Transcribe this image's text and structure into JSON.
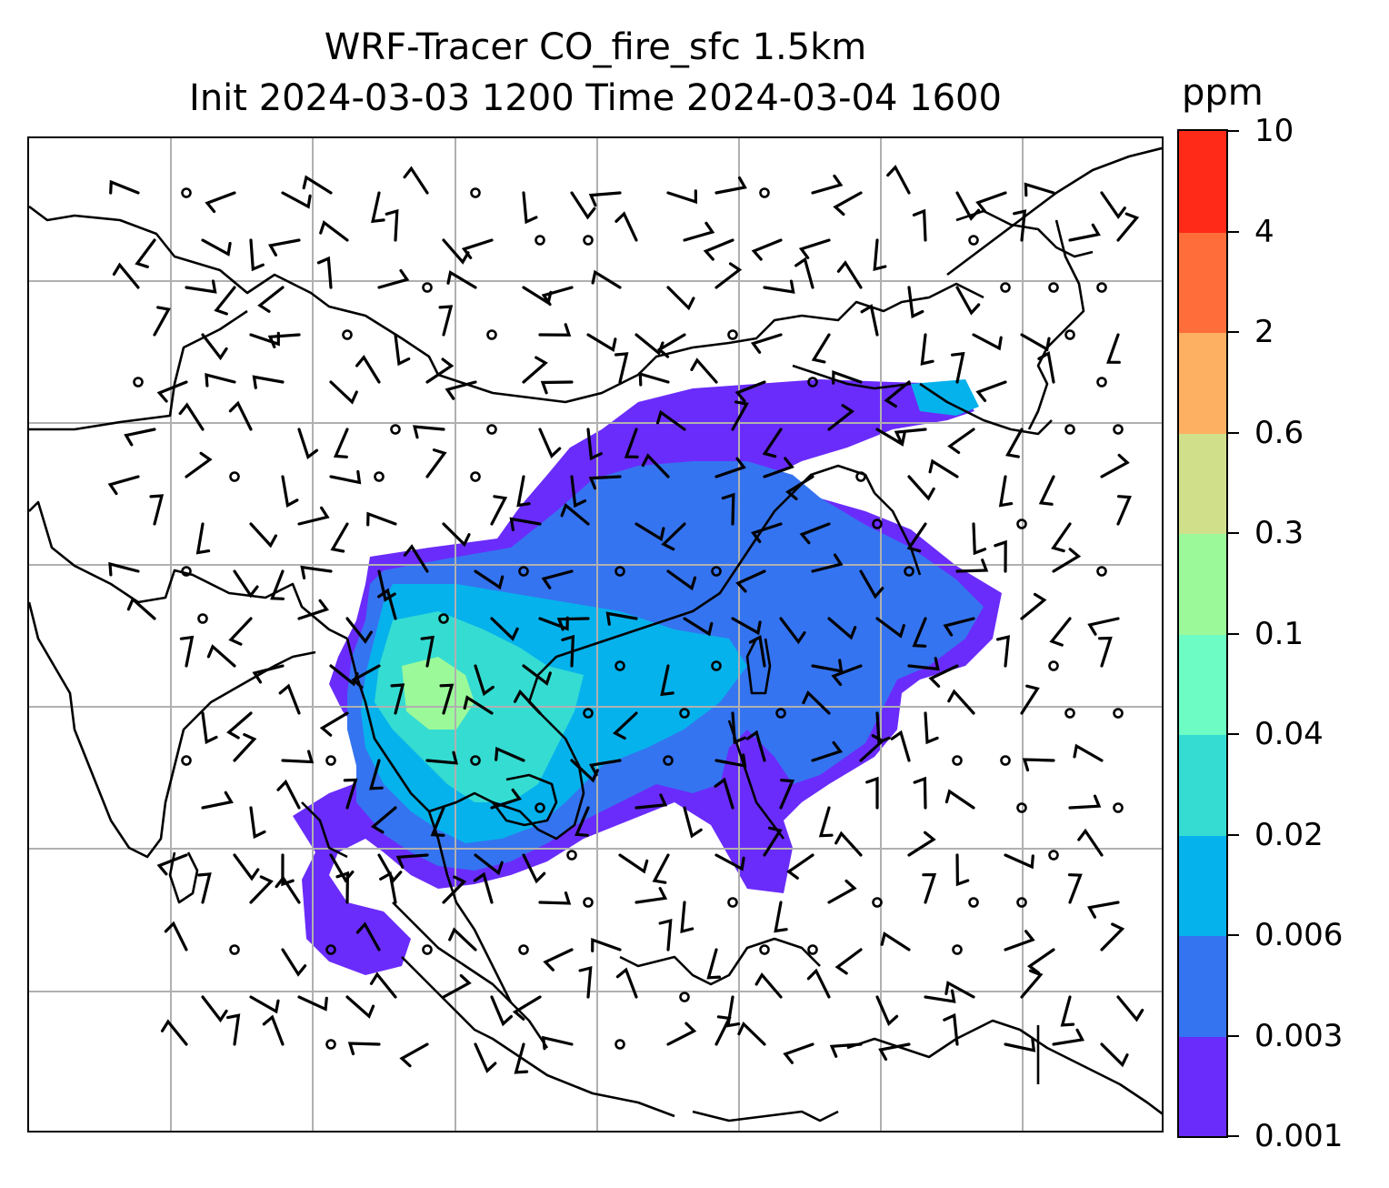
{
  "title": {
    "line1": "WRF-Tracer CO_fire_sfc 1.5km",
    "line2": "Init 2024-03-03 1200 Time 2024-03-04 1600"
  },
  "colorbar": {
    "unit": "ppm",
    "levels": [
      "0.001",
      "0.003",
      "0.006",
      "0.02",
      "0.04",
      "0.1",
      "0.3",
      "0.6",
      "2",
      "4",
      "10"
    ],
    "colors": [
      "#6a2cfb",
      "#3574f0",
      "#06b2ec",
      "#35dcd2",
      "#6dfcc3",
      "#9cf99a",
      "#d0e08a",
      "#feb062",
      "#ff6e3a",
      "#ff2a18"
    ]
  },
  "map": {
    "gridlines": "on",
    "grid_color": "#b0b0b0",
    "coastline_color": "#000000",
    "plume_colors": {
      "outer": "#6a2cfb",
      "mid": "#3574f0",
      "inner": "#06b2ec",
      "core": "#35dcd2",
      "peak": "#9cf99a"
    },
    "wind_barbs": "on"
  }
}
